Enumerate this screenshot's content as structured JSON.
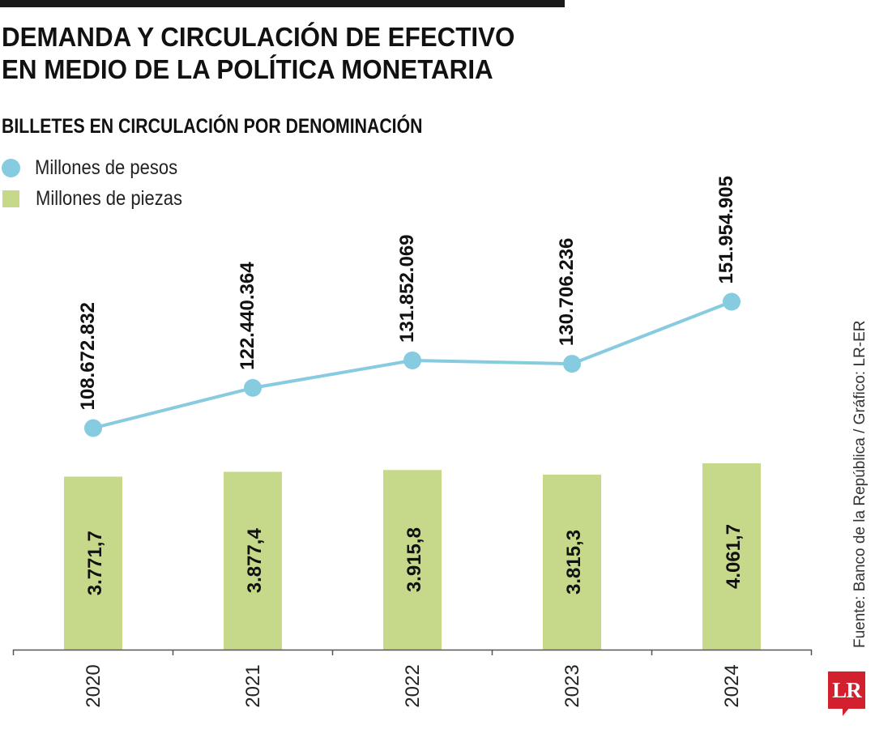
{
  "title": [
    "DEMANDA Y CIRCULACIÓN DE EFECTIVO",
    "EN MEDIO DE LA POLÍTICA MONETARIA"
  ],
  "source": "Fuente: Banco de la República / Gráfico: LR-ER",
  "logo_text": "LR",
  "colors": {
    "line": "#86cbe0",
    "bar": "#c6d98a",
    "text": "#111111",
    "logo": "#d2202f"
  },
  "chart_data": {
    "type": "bar+line",
    "title": "BILLETES EN CIRCULACIÓN POR DENOMINACIÓN",
    "categories": [
      "2020",
      "2021",
      "2022",
      "2023",
      "2024"
    ],
    "series": [
      {
        "name": "Millones de pesos",
        "type": "line",
        "values": [
          108672832,
          122440364,
          131852069,
          130706236,
          151954905
        ],
        "labels": [
          "108.672.832",
          "122.440.364",
          "131.852.069",
          "130.706.236",
          "151.954.905"
        ]
      },
      {
        "name": "Millones de piezas",
        "type": "bar",
        "values": [
          3771.7,
          3877.4,
          3915.8,
          3815.3,
          4061.7
        ],
        "labels": [
          "3.771,7",
          "3.877,4",
          "3.915,8",
          "3.815,3",
          "4.061,7"
        ]
      }
    ],
    "legend": "top-left",
    "grid": false
  }
}
